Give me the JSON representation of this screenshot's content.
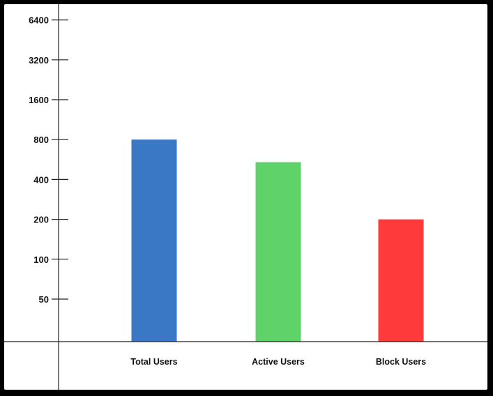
{
  "chart_data": {
    "type": "bar",
    "title": "",
    "xlabel": "",
    "ylabel": "",
    "y_scale": "log2",
    "y_ticks": [
      50,
      100,
      200,
      400,
      800,
      1600,
      3200,
      6400
    ],
    "y_tick_labels": [
      "50",
      "100",
      "200",
      "400",
      "800",
      "1600",
      "3200",
      "6400"
    ],
    "categories": [
      "Total Users",
      "Active Users",
      "Block Users"
    ],
    "values": [
      800,
      540,
      200
    ],
    "colors": [
      "#3a78c6",
      "#5fd36a",
      "#ff3a3a"
    ],
    "grid": false,
    "legend": "none"
  }
}
